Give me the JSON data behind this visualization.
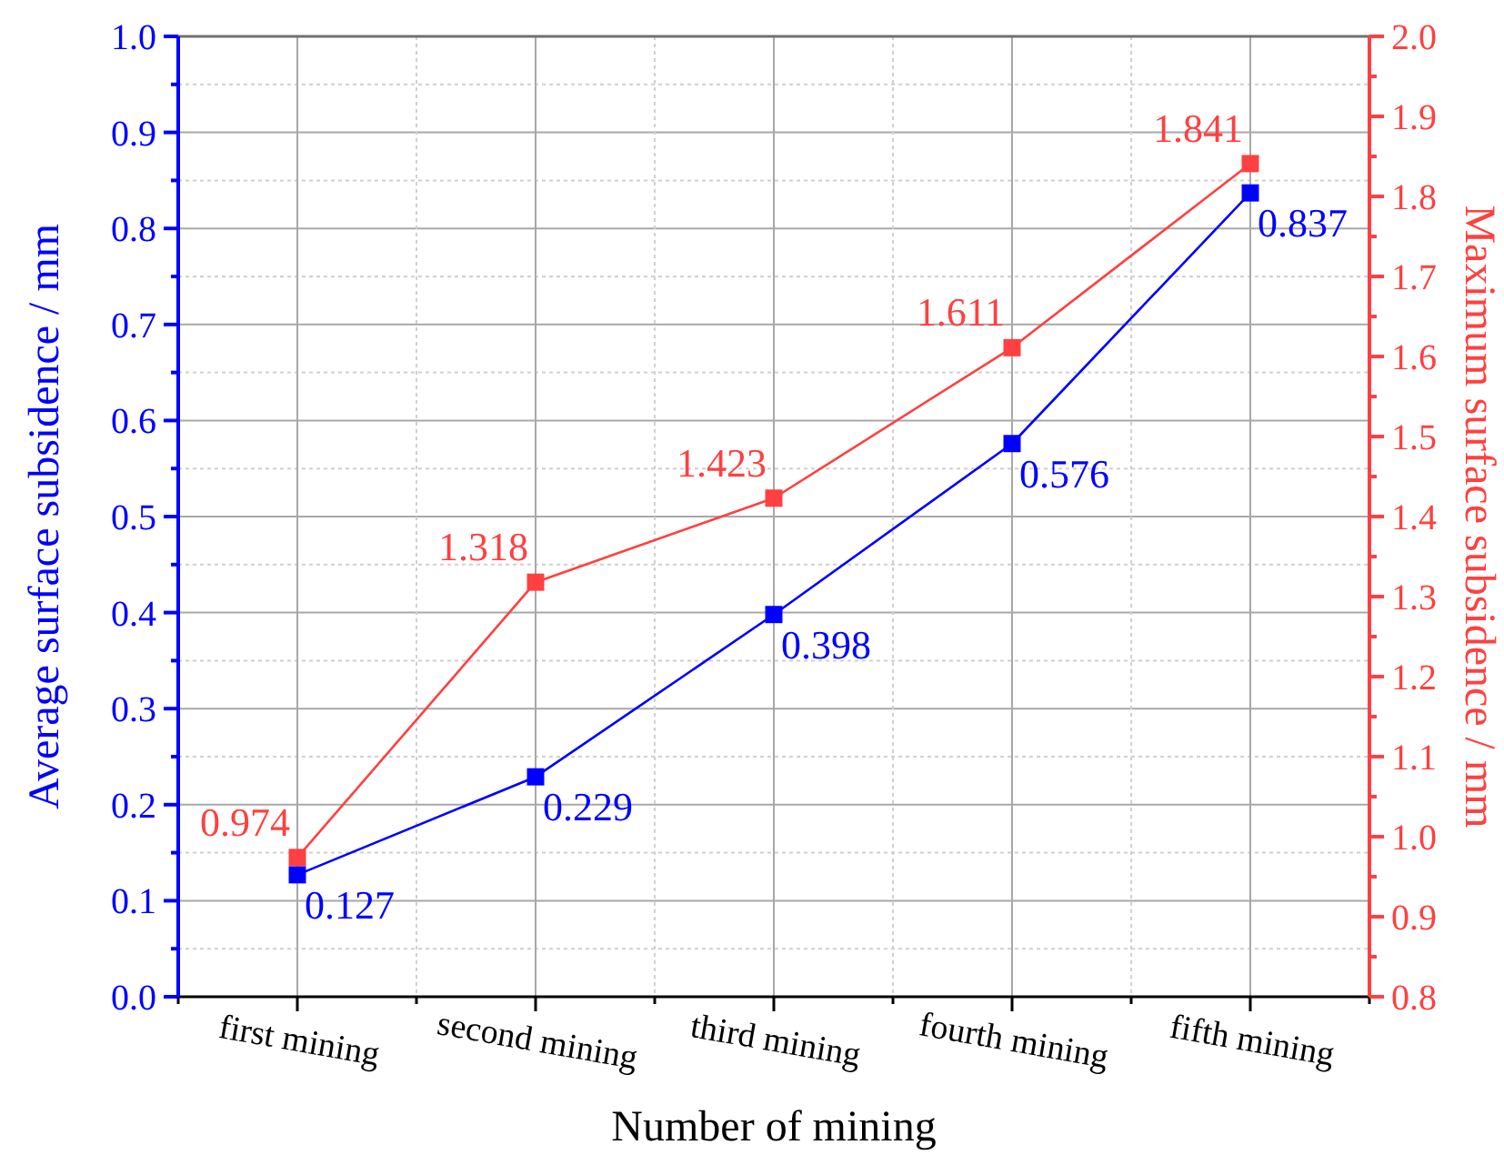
{
  "chart_data": {
    "type": "line",
    "xlabel": "Number of mining",
    "ylabel": "Average surface subsidence / mm",
    "y2label": "Maximum surface subsidence / mm",
    "categories": [
      "first mining",
      "second mining",
      "third mining",
      "fourth mining",
      "fifth mining"
    ],
    "series": [
      {
        "name": null,
        "color": "#0000ff",
        "values": [
          0.127,
          0.229,
          0.398,
          0.576,
          0.837
        ]
      },
      {
        "name": null,
        "color": "#ff4040",
        "axis": "y2",
        "values": [
          0.974,
          1.318,
          1.423,
          1.611,
          1.841
        ]
      }
    ],
    "ylim": [
      0,
      1
    ],
    "yticks": [
      {
        "value": 0,
        "label": "0.0"
      },
      0.1,
      0.2,
      0.3,
      0.4,
      0.5,
      0.6,
      0.7,
      0.8,
      0.9,
      {
        "value": 1,
        "label": "1.0"
      }
    ],
    "y2lim": [
      0.8,
      2
    ],
    "y2ticks": [
      0.8,
      0.9,
      {
        "value": 1,
        "label": "1.0"
      },
      1.1,
      1.2,
      1.3,
      1.4,
      1.5,
      1.6,
      1.7,
      1.8,
      1.9,
      {
        "value": 2,
        "label": "2.0"
      }
    ],
    "grid": true,
    "marker": "square",
    "line_style": "solid",
    "data_labels": true
  }
}
